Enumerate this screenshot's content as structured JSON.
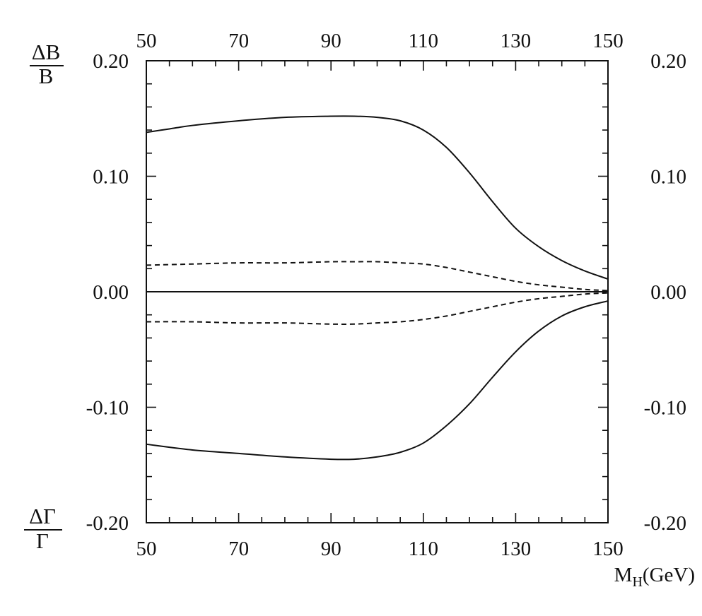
{
  "chart_data": {
    "type": "line",
    "xlabel": {
      "main": "M",
      "sub": "H",
      "unit": "(GeV)"
    },
    "ylabel_top": {
      "numerator": "ΔB",
      "denominator": "B"
    },
    "ylabel_bottom": {
      "numerator": "ΔΓ",
      "denominator": "Γ"
    },
    "xlim": [
      50,
      150
    ],
    "ylim": [
      -0.2,
      0.2
    ],
    "x_tick_labels": [
      "50",
      "70",
      "90",
      "110",
      "130",
      "150"
    ],
    "y_tick_labels": [
      "0.20",
      "0.10",
      "0.00",
      "-0.10",
      "-0.20"
    ],
    "x_ticks": [
      50,
      70,
      90,
      110,
      130,
      150
    ],
    "y_ticks": [
      0.2,
      0.1,
      0.0,
      -0.1,
      -0.2
    ],
    "mirror_axes": true,
    "grid": false,
    "series": [
      {
        "style": "solid",
        "x": [
          50,
          55,
          60,
          70,
          80,
          90,
          95,
          100,
          105,
          110,
          115,
          120,
          125,
          130,
          135,
          140,
          145,
          150
        ],
        "y": [
          0.138,
          0.141,
          0.144,
          0.148,
          0.151,
          0.152,
          0.152,
          0.151,
          0.148,
          0.14,
          0.125,
          0.103,
          0.078,
          0.055,
          0.039,
          0.027,
          0.018,
          0.011
        ]
      },
      {
        "style": "dashed",
        "x": [
          50,
          60,
          70,
          80,
          90,
          95,
          100,
          105,
          110,
          115,
          120,
          125,
          130,
          135,
          140,
          145,
          150
        ],
        "y": [
          0.023,
          0.024,
          0.025,
          0.025,
          0.026,
          0.026,
          0.026,
          0.025,
          0.024,
          0.021,
          0.017,
          0.013,
          0.009,
          0.006,
          0.004,
          0.002,
          0.001
        ]
      },
      {
        "style": "solid",
        "x": [
          50,
          150
        ],
        "y": [
          0.0,
          0.0
        ]
      },
      {
        "style": "dashed",
        "x": [
          50,
          60,
          70,
          80,
          90,
          95,
          100,
          105,
          110,
          115,
          120,
          125,
          130,
          135,
          140,
          145,
          150
        ],
        "y": [
          -0.026,
          -0.026,
          -0.027,
          -0.027,
          -0.028,
          -0.028,
          -0.027,
          -0.026,
          -0.024,
          -0.021,
          -0.017,
          -0.013,
          -0.009,
          -0.006,
          -0.004,
          -0.002,
          -0.001
        ]
      },
      {
        "style": "solid",
        "x": [
          50,
          60,
          70,
          80,
          90,
          95,
          100,
          105,
          110,
          115,
          120,
          125,
          130,
          135,
          140,
          145,
          150
        ],
        "y": [
          -0.132,
          -0.137,
          -0.14,
          -0.143,
          -0.145,
          -0.145,
          -0.143,
          -0.139,
          -0.131,
          -0.116,
          -0.097,
          -0.074,
          -0.052,
          -0.034,
          -0.021,
          -0.013,
          -0.008
        ]
      }
    ],
    "colors": {
      "line": "#111111",
      "frame": "#111111",
      "background": "#ffffff"
    }
  }
}
